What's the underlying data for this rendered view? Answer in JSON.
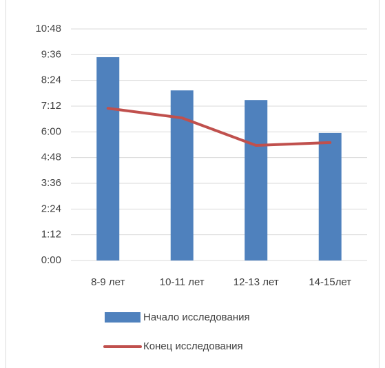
{
  "chart_data": {
    "type": "bar_line",
    "categories": [
      "8-9 лет",
      "10-11 лет",
      "12-13 лет",
      "14-15лет"
    ],
    "series": [
      {
        "name": "Начало исследования",
        "type": "bar",
        "color": "#4f81bd",
        "values": [
          569,
          476,
          449,
          357
        ]
      },
      {
        "name": "Конец исследования",
        "type": "line",
        "color": "#c0504d",
        "values": [
          426,
          399,
          322,
          330
        ]
      }
    ],
    "ylim": [
      0,
      648
    ],
    "yticks": [
      {
        "value": 0,
        "label": "0:00"
      },
      {
        "value": 72,
        "label": "1:12"
      },
      {
        "value": 144,
        "label": "2:24"
      },
      {
        "value": 216,
        "label": "3:36"
      },
      {
        "value": 288,
        "label": "4:48"
      },
      {
        "value": 360,
        "label": "6:00"
      },
      {
        "value": 432,
        "label": "7:12"
      },
      {
        "value": 504,
        "label": "8:24"
      },
      {
        "value": 576,
        "label": "9:36"
      },
      {
        "value": 648,
        "label": "10:48"
      }
    ],
    "grid": true,
    "legend": "bottom"
  }
}
